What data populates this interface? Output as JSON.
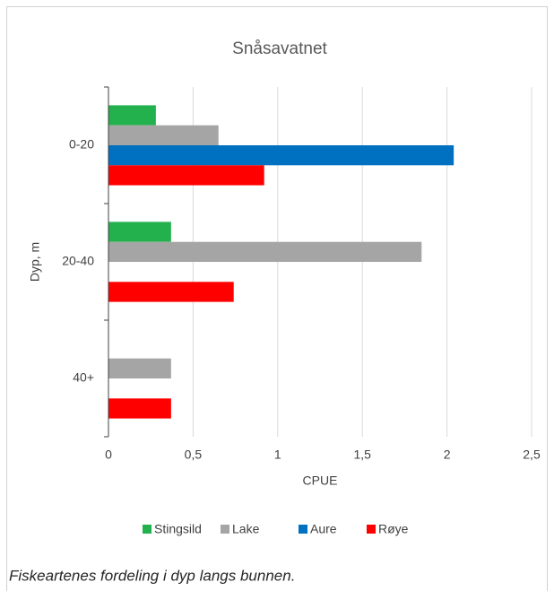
{
  "chart_data": {
    "type": "bar",
    "orientation": "horizontal",
    "title": "Snåsavatnet",
    "xlabel": "CPUE",
    "ylabel": "Dyp, m",
    "categories": [
      "0-20",
      "20-40",
      "40+"
    ],
    "series": [
      {
        "name": "Stingsild",
        "color": "#22b14c",
        "values": [
          0.28,
          0.37,
          null
        ]
      },
      {
        "name": "Lake",
        "color": "#a5a5a5",
        "values": [
          0.65,
          1.85,
          0.37
        ]
      },
      {
        "name": "Aure",
        "color": "#0070c0",
        "values": [
          2.04,
          null,
          null
        ]
      },
      {
        "name": "Røye",
        "color": "#ff0000",
        "values": [
          0.92,
          0.74,
          0.37
        ]
      }
    ],
    "xlim": [
      0,
      2.5
    ],
    "xticks": [
      0,
      {
        "value": 0.5,
        "label": "0,5"
      },
      1,
      {
        "value": 1.5,
        "label": "1,5"
      },
      2,
      {
        "value": 2.5,
        "label": "2,5"
      }
    ],
    "grid": true,
    "legend": "bottom",
    "caption": "Fiskeartenes fordeling i dyp langs bunnen."
  }
}
